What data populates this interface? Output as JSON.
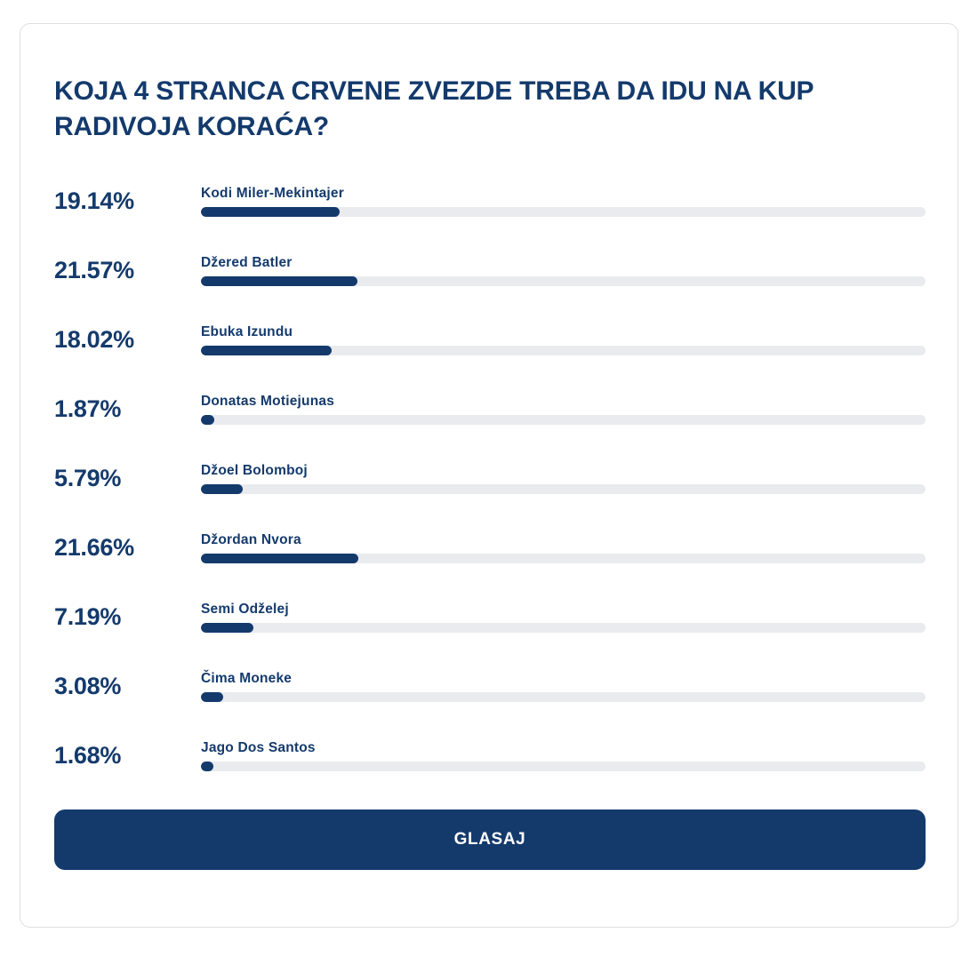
{
  "poll": {
    "title": "KOJA 4 STRANCA CRVENE ZVEZDE TREBA DA IDU NA KUP RADIVOJA KORAĆA?",
    "vote_button_label": "GLASAJ",
    "options": [
      {
        "label": "Kodi Miler-Mekintajer",
        "percent": 19.14,
        "percent_label": "19.14%"
      },
      {
        "label": "Džered Batler",
        "percent": 21.57,
        "percent_label": "21.57%"
      },
      {
        "label": "Ebuka Izundu",
        "percent": 18.02,
        "percent_label": "18.02%"
      },
      {
        "label": "Donatas Motiejunas",
        "percent": 1.87,
        "percent_label": "1.87%"
      },
      {
        "label": "Džoel Bolomboj",
        "percent": 5.79,
        "percent_label": "5.79%"
      },
      {
        "label": "Džordan Nvora",
        "percent": 21.66,
        "percent_label": "21.66%"
      },
      {
        "label": "Semi Odželej",
        "percent": 7.19,
        "percent_label": "7.19%"
      },
      {
        "label": "Čima Moneke",
        "percent": 3.08,
        "percent_label": "3.08%"
      },
      {
        "label": "Jago Dos Santos",
        "percent": 1.68,
        "percent_label": "1.68%"
      }
    ]
  },
  "colors": {
    "navy": "#143a6c",
    "bar_track": "#e9ebee",
    "card_border": "#dfdfdf"
  }
}
